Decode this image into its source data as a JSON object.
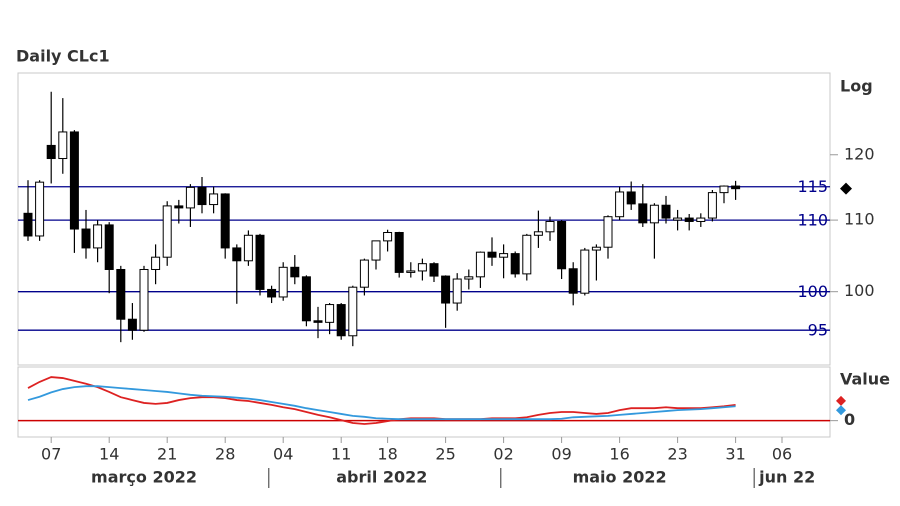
{
  "chart_data": [
    {
      "type": "candlestick",
      "title": "Daily CLc1",
      "scale_label": "Log",
      "log": true,
      "categories": [
        "2022-03-03",
        "2022-03-04",
        "2022-03-07",
        "2022-03-08",
        "2022-03-09",
        "2022-03-10",
        "2022-03-11",
        "2022-03-14",
        "2022-03-15",
        "2022-03-16",
        "2022-03-17",
        "2022-03-18",
        "2022-03-21",
        "2022-03-22",
        "2022-03-23",
        "2022-03-24",
        "2022-03-25",
        "2022-03-28",
        "2022-03-29",
        "2022-03-30",
        "2022-03-31",
        "2022-04-01",
        "2022-04-04",
        "2022-04-05",
        "2022-04-06",
        "2022-04-07",
        "2022-04-08",
        "2022-04-11",
        "2022-04-12",
        "2022-04-13",
        "2022-04-14",
        "2022-04-18",
        "2022-04-19",
        "2022-04-20",
        "2022-04-21",
        "2022-04-22",
        "2022-04-25",
        "2022-04-26",
        "2022-04-27",
        "2022-04-28",
        "2022-04-29",
        "2022-05-02",
        "2022-05-03",
        "2022-05-04",
        "2022-05-05",
        "2022-05-06",
        "2022-05-09",
        "2022-05-10",
        "2022-05-11",
        "2022-05-12",
        "2022-05-13",
        "2022-05-16",
        "2022-05-17",
        "2022-05-18",
        "2022-05-19",
        "2022-05-20",
        "2022-05-23",
        "2022-05-24",
        "2022-05-25",
        "2022-05-26",
        "2022-05-27",
        "2022-05-31"
      ],
      "open": [
        111.0,
        107.7,
        121.5,
        119.4,
        123.7,
        108.7,
        106.0,
        109.3,
        103.0,
        96.4,
        95.0,
        103.0,
        104.7,
        112.1,
        111.8,
        114.9,
        112.3,
        113.9,
        106.0,
        104.2,
        107.8,
        100.3,
        99.3,
        103.3,
        102.0,
        96.2,
        96.0,
        98.3,
        94.3,
        100.6,
        104.3,
        107.0,
        108.2,
        102.6,
        102.8,
        103.8,
        102.1,
        98.5,
        101.7,
        102.0,
        105.4,
        104.7,
        105.2,
        102.4,
        107.8,
        108.3,
        109.8,
        103.1,
        99.8,
        105.7,
        106.1,
        110.5,
        114.2,
        112.4,
        109.6,
        112.2,
        110.0,
        110.3,
        109.8,
        110.3,
        114.1,
        115.1
      ],
      "high": [
        116.0,
        116.0,
        130.5,
        129.4,
        124.0,
        111.5,
        110.0,
        109.7,
        103.5,
        98.5,
        103.5,
        106.5,
        112.8,
        113.0,
        115.4,
        116.5,
        115.0,
        114.0,
        106.5,
        108.5,
        108.0,
        100.8,
        104.0,
        105.0,
        102.2,
        98.0,
        98.5,
        98.5,
        100.8,
        104.5,
        107.0,
        108.6,
        108.3,
        104.0,
        104.5,
        104.0,
        102.2,
        102.5,
        103.0,
        105.5,
        107.5,
        106.5,
        105.5,
        108.0,
        111.4,
        110.5,
        110.0,
        104.0,
        106.0,
        106.5,
        110.7,
        115.0,
        115.8,
        115.4,
        112.5,
        113.6,
        111.5,
        110.9,
        111.0,
        114.5,
        115.2,
        115.9
      ],
      "low": [
        107.0,
        107.0,
        115.5,
        117.0,
        105.3,
        104.5,
        104.0,
        99.8,
        93.5,
        93.8,
        94.8,
        101.0,
        103.5,
        109.5,
        109.0,
        111.0,
        111.0,
        104.5,
        98.4,
        103.5,
        99.5,
        98.5,
        98.8,
        101.0,
        95.5,
        94.0,
        94.5,
        93.8,
        93.0,
        99.5,
        103.0,
        105.5,
        101.9,
        101.9,
        101.5,
        101.3,
        95.3,
        97.5,
        100.3,
        100.5,
        103.5,
        101.8,
        101.9,
        101.5,
        106.0,
        107.0,
        101.7,
        98.2,
        99.5,
        101.5,
        104.5,
        110.0,
        111.5,
        109.0,
        104.5,
        109.5,
        108.5,
        108.5,
        109.0,
        109.8,
        112.5,
        113.0
      ],
      "close": [
        107.7,
        115.7,
        119.4,
        123.7,
        108.7,
        106.0,
        109.3,
        103.0,
        96.4,
        95.0,
        103.0,
        104.7,
        112.1,
        111.8,
        114.9,
        112.3,
        113.9,
        106.0,
        104.2,
        107.8,
        100.3,
        99.3,
        103.3,
        102.0,
        96.2,
        96.0,
        98.3,
        94.3,
        100.6,
        104.3,
        107.0,
        108.2,
        102.6,
        102.8,
        103.8,
        102.1,
        98.5,
        101.7,
        102.0,
        105.4,
        104.7,
        105.2,
        102.4,
        107.8,
        108.3,
        109.8,
        103.1,
        99.8,
        105.7,
        106.1,
        110.5,
        114.2,
        112.4,
        109.6,
        112.2,
        110.3,
        110.3,
        109.8,
        110.3,
        114.1,
        115.1,
        114.7
      ],
      "up_color": "#ffffff",
      "down_color": "#000000",
      "ylim": [
        90.7,
        133.8
      ],
      "yticks": [
        120,
        110,
        100
      ],
      "levels": {
        "values": [
          115,
          110,
          100,
          95
        ],
        "color": "#00008b"
      },
      "xticks": [
        {
          "value": "2022-03-07",
          "label": "07"
        },
        {
          "value": "2022-03-14",
          "label": "14"
        },
        {
          "value": "2022-03-21",
          "label": "21"
        },
        {
          "value": "2022-03-28",
          "label": "28"
        },
        {
          "value": "2022-04-04",
          "label": "04"
        },
        {
          "value": "2022-04-11",
          "label": "11"
        },
        {
          "value": "2022-04-18",
          "label": "18"
        },
        {
          "value": "2022-04-25",
          "label": "25"
        },
        {
          "value": "2022-05-02",
          "label": "02"
        },
        {
          "value": "2022-05-09",
          "label": "09"
        },
        {
          "value": "2022-05-16",
          "label": "16"
        },
        {
          "value": "2022-05-23",
          "label": "23"
        },
        {
          "value": "2022-05-31",
          "label": "31"
        },
        {
          "value": "2022-06-06",
          "label": "06"
        }
      ],
      "months": [
        "março 2022",
        "abril 2022",
        "maio 2022",
        "jun 22"
      ]
    },
    {
      "type": "line",
      "y_label": "Value",
      "ylim": [
        -3,
        11
      ],
      "yticks": [
        0
      ],
      "baseline_color": "#cc0000",
      "series": [
        {
          "color": "#dd2222",
          "values": [
            6.8,
            8.1,
            9.1,
            8.9,
            8.3,
            7.7,
            7.0,
            6.0,
            4.9,
            4.3,
            3.7,
            3.5,
            3.7,
            4.3,
            4.7,
            4.9,
            4.9,
            4.7,
            4.3,
            4.1,
            3.7,
            3.3,
            2.8,
            2.4,
            1.8,
            1.2,
            0.7,
            0.1,
            -0.5,
            -0.7,
            -0.5,
            -0.1,
            0.3,
            0.5,
            0.5,
            0.5,
            0.3,
            0.3,
            0.3,
            0.3,
            0.5,
            0.5,
            0.5,
            0.7,
            1.2,
            1.6,
            1.8,
            1.8,
            1.6,
            1.4,
            1.6,
            2.2,
            2.6,
            2.6,
            2.6,
            2.8,
            2.6,
            2.6,
            2.6,
            2.8,
            3.0,
            3.3
          ]
        },
        {
          "color": "#3399dd",
          "values": [
            4.3,
            5.0,
            5.9,
            6.6,
            7.0,
            7.2,
            7.2,
            7.0,
            6.8,
            6.6,
            6.4,
            6.2,
            6.0,
            5.7,
            5.4,
            5.2,
            5.1,
            5.0,
            4.8,
            4.6,
            4.3,
            3.9,
            3.5,
            3.1,
            2.6,
            2.2,
            1.8,
            1.4,
            1.0,
            0.8,
            0.5,
            0.4,
            0.3,
            0.3,
            0.3,
            0.3,
            0.3,
            0.3,
            0.3,
            0.3,
            0.3,
            0.3,
            0.3,
            0.3,
            0.3,
            0.3,
            0.4,
            0.7,
            0.8,
            0.9,
            1.0,
            1.2,
            1.4,
            1.6,
            1.8,
            2.0,
            2.2,
            2.3,
            2.4,
            2.6,
            2.8,
            3.0
          ]
        }
      ]
    }
  ]
}
